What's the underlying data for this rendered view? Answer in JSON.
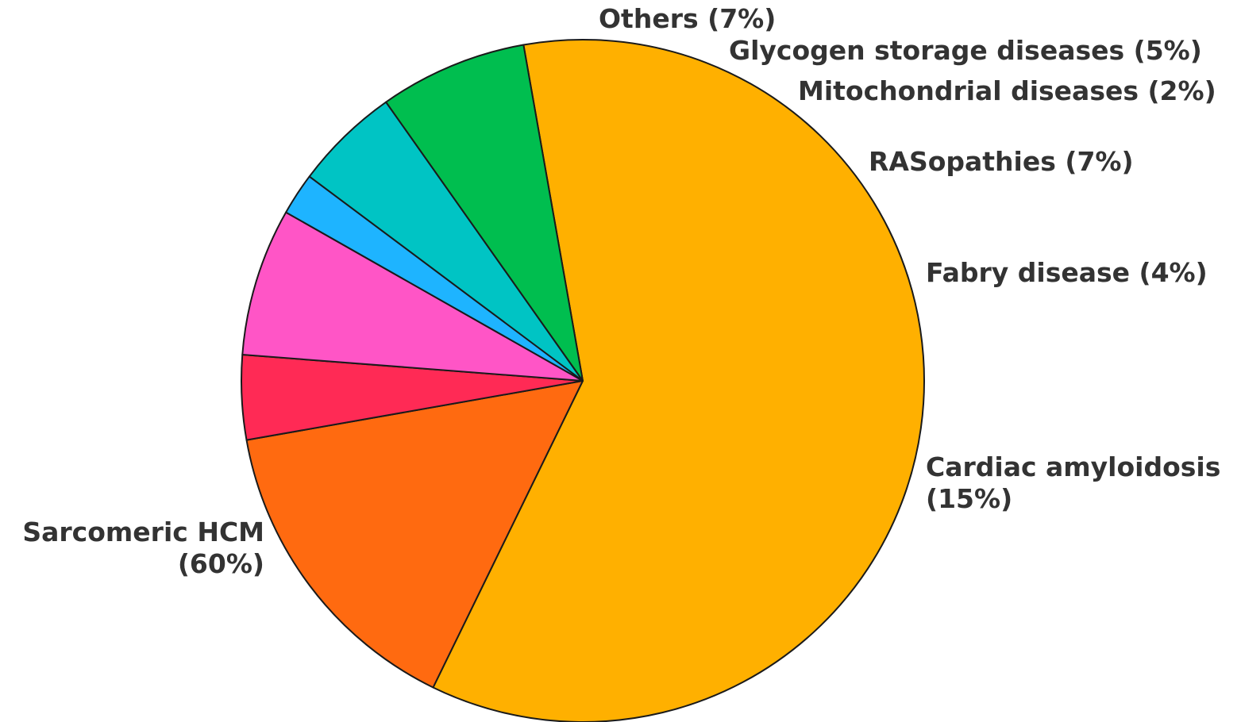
{
  "chart_data": {
    "type": "pie",
    "title": "",
    "slices": [
      {
        "label": "Sarcomeric HCM (60%)",
        "lines": [
          "Sarcomeric HCM",
          "(60%)"
        ],
        "value": 60,
        "color": "#FFB000"
      },
      {
        "label": "Cardiac amyloidosis (15%)",
        "lines": [
          "Cardiac amyloidosis",
          "(15%)"
        ],
        "value": 15,
        "color": "#FF6A10"
      },
      {
        "label": "Fabry disease (4%)",
        "lines": [
          "Fabry disease (4%)"
        ],
        "value": 4,
        "color": "#FF2A55"
      },
      {
        "label": "RASopathies (7%)",
        "lines": [
          "RASopathies (7%)"
        ],
        "value": 7,
        "color": "#FF55C6"
      },
      {
        "label": "Mitochondrial diseases (2%)",
        "lines": [
          "Mitochondrial diseases (2%)"
        ],
        "value": 2,
        "color": "#1EB4FF"
      },
      {
        "label": "Glycogen storage diseases (5%)",
        "lines": [
          "Glycogen storage diseases (5%)"
        ],
        "value": 5,
        "color": "#00C4C4"
      },
      {
        "label": "Others (7%)",
        "lines": [
          "Others (7%)"
        ],
        "value": 7,
        "color": "#00BE4F"
      }
    ],
    "start_angle_deg": 100,
    "direction": "clockwise",
    "legend": "none"
  }
}
